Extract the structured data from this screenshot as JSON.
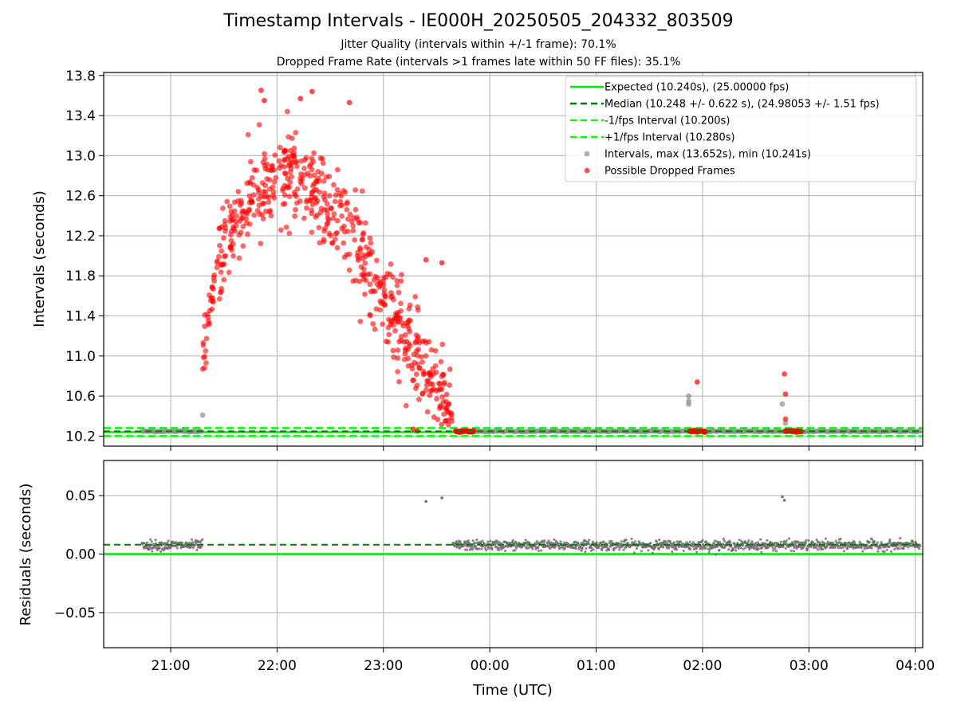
{
  "title": "Timestamp Intervals - IE000H_20250505_204332_803509",
  "subtitle_1": "Jitter Quality (intervals within +/-1 frame): 70.1%",
  "subtitle_2": "Dropped Frame Rate (intervals >1 frames late within 50 FF files): 35.1%",
  "colors": {
    "expected": "#00e600",
    "median": "#007f00",
    "interval_band": "#00ff00",
    "intervals": "#8c8c8c",
    "dropped": "#ff0000",
    "grid": "#b0b0b0"
  },
  "chart_data": [
    {
      "type": "scatter",
      "panel": "top",
      "title": "",
      "xlabel": "",
      "ylabel": "Intervals (seconds)",
      "x_range_hours": [
        20.37,
        28.07
      ],
      "ylim": [
        10.1,
        13.83
      ],
      "yticks": [
        10.2,
        10.6,
        11.0,
        11.4,
        11.8,
        12.2,
        12.6,
        13.0,
        13.4,
        13.8
      ],
      "xticks": [
        "21:00",
        "22:00",
        "23:00",
        "00:00",
        "01:00",
        "02:00",
        "03:00",
        "04:00"
      ],
      "xtick_hours": [
        21,
        22,
        23,
        24,
        25,
        26,
        27,
        28
      ],
      "grid": true,
      "legend_position": "top-right",
      "legend": [
        {
          "label": "Expected (10.240s), (25.00000 fps)",
          "style": "solid-line",
          "color": "#00e600"
        },
        {
          "label": "Median (10.248 +/- 0.622 s), (24.98053 +/- 1.51 fps)",
          "style": "dashed-line",
          "color": "#007f00"
        },
        {
          "label": "-1/fps Interval (10.200s)",
          "style": "dashed-line",
          "color": "#00ff00"
        },
        {
          "label": "+1/fps Interval (10.280s)",
          "style": "dashed-line",
          "color": "#00ff00"
        },
        {
          "label": "Intervals, max (13.652s), min (10.241s)",
          "style": "marker",
          "color": "#8c8c8c"
        },
        {
          "label": "Possible Dropped Frames",
          "style": "marker",
          "color": "#ff0000"
        }
      ],
      "lines": {
        "expected": 10.24,
        "median": 10.248,
        "minus_interval": 10.2,
        "plus_interval": 10.28
      },
      "series": [
        {
          "name": "Intervals, max (13.652s), min (10.241s)",
          "segments": [
            [
              20.73,
              21.3
            ],
            [
              23.7,
              28.05
            ]
          ],
          "value": 10.248,
          "extra_points": [
            [
              21.3,
              10.41
            ],
            [
              25.87,
              10.52
            ],
            [
              25.87,
              10.55
            ],
            [
              25.87,
              10.6
            ],
            [
              26.75,
              10.52
            ],
            [
              26.78,
              10.33
            ],
            [
              26.78,
              10.25
            ]
          ]
        },
        {
          "name": "Possible Dropped Frames",
          "trend": [
            [
              21.3,
              11.1
            ],
            [
              21.5,
              12.15
            ],
            [
              21.75,
              12.55
            ],
            [
              22.0,
              12.7
            ],
            [
              22.25,
              12.75
            ],
            [
              22.5,
              12.5
            ],
            [
              22.75,
              12.15
            ],
            [
              23.0,
              11.6
            ],
            [
              23.25,
              11.05
            ],
            [
              23.5,
              10.7
            ],
            [
              23.65,
              10.4
            ]
          ],
          "spread": 0.22,
          "count": 600,
          "notable_points": [
            [
              21.85,
              13.652
            ],
            [
              21.88,
              13.55
            ],
            [
              22.33,
              13.64
            ],
            [
              22.22,
              13.57
            ],
            [
              22.68,
              13.53
            ],
            [
              23.4,
              11.96
            ],
            [
              23.55,
              11.93
            ],
            [
              23.28,
              10.27
            ],
            [
              23.32,
              10.25
            ],
            [
              25.95,
              10.74
            ],
            [
              26.77,
              10.82
            ],
            [
              26.78,
              10.62
            ],
            [
              26.78,
              10.37
            ]
          ],
          "clusters": [
            [
              23.68,
              23.85,
              10.248
            ],
            [
              25.88,
              26.03,
              10.248
            ],
            [
              26.78,
              26.93,
              10.248
            ]
          ]
        }
      ]
    },
    {
      "type": "scatter",
      "panel": "bottom",
      "title": "",
      "xlabel": "Time (UTC)",
      "ylabel": "Residuals (seconds)",
      "x_range_hours": [
        20.37,
        28.07
      ],
      "ylim": [
        -0.08,
        0.08
      ],
      "yticks": [
        -0.05,
        0.0,
        0.05
      ],
      "ytick_labels": [
        "−0.05",
        "0.00",
        "0.05"
      ],
      "xticks": [
        "21:00",
        "22:00",
        "23:00",
        "00:00",
        "01:00",
        "02:00",
        "03:00",
        "04:00"
      ],
      "xtick_hours": [
        21,
        22,
        23,
        24,
        25,
        26,
        27,
        28
      ],
      "grid": true,
      "lines": {
        "expected_residual": 0.0,
        "median_residual": 0.008
      },
      "series": [
        {
          "name": "Residuals",
          "segments": [
            [
              20.73,
              21.3
            ],
            [
              23.65,
              28.05
            ]
          ],
          "center": 0.0075,
          "spread": 0.006,
          "notable_points": [
            [
              23.4,
              0.045
            ],
            [
              23.55,
              0.048
            ],
            [
              26.75,
              0.049
            ],
            [
              26.77,
              0.046
            ]
          ]
        }
      ]
    }
  ]
}
